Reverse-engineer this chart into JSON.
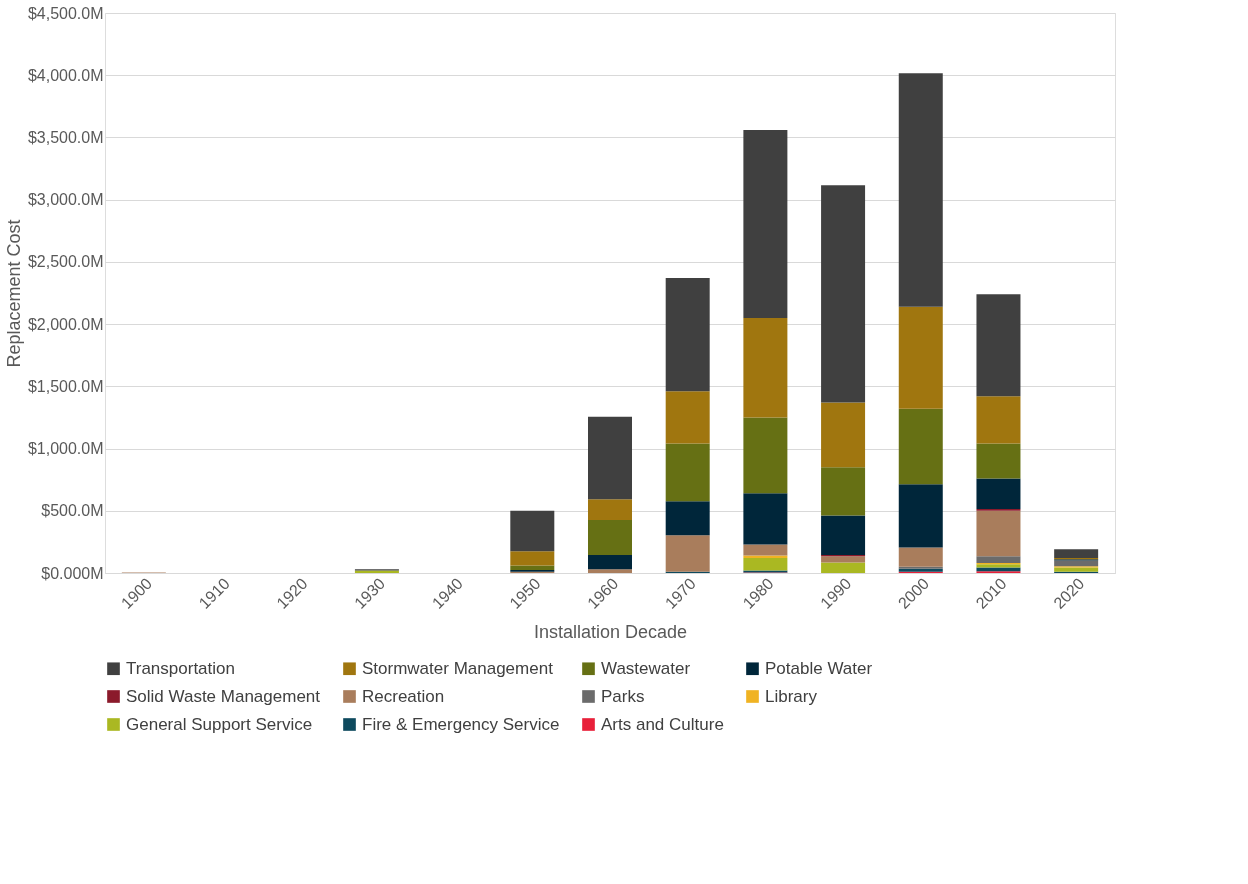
{
  "chart_data": {
    "type": "bar",
    "stacked": true,
    "xlabel": "Installation Decade",
    "ylabel": "Replacement Cost",
    "categories": [
      "1900",
      "1910",
      "1920",
      "1930",
      "1940",
      "1950",
      "1960",
      "1970",
      "1980",
      "1990",
      "2000",
      "2010",
      "2020"
    ],
    "series": [
      {
        "name": "Arts and Culture",
        "color": "#e8203a",
        "values": [
          null,
          null,
          null,
          null,
          null,
          null,
          null,
          null,
          5,
          null,
          10,
          15,
          null
        ]
      },
      {
        "name": "Fire & Emergency Service",
        "color": "#0e4a5e",
        "values": [
          null,
          null,
          null,
          null,
          null,
          null,
          null,
          10,
          15,
          null,
          25,
          30,
          10
        ]
      },
      {
        "name": "General Support Service",
        "color": "#aab822",
        "values": [
          null,
          null,
          null,
          20,
          null,
          null,
          null,
          null,
          100,
          85,
          null,
          25,
          35
        ]
      },
      {
        "name": "Library",
        "color": "#f0b323",
        "values": [
          null,
          null,
          null,
          null,
          null,
          null,
          null,
          null,
          20,
          null,
          null,
          10,
          10
        ]
      },
      {
        "name": "Parks",
        "color": "#6b6b6b",
        "values": [
          null,
          null,
          null,
          null,
          null,
          null,
          null,
          null,
          null,
          null,
          15,
          55,
          45
        ]
      },
      {
        "name": "Recreation",
        "color": "#a97d5c",
        "values": [
          5,
          null,
          null,
          null,
          null,
          10,
          30,
          294,
          90,
          50,
          155,
          365,
          null
        ]
      },
      {
        "name": "Solid Waste Management",
        "color": "#8b1a2b",
        "values": [
          null,
          null,
          null,
          null,
          null,
          null,
          null,
          null,
          null,
          10,
          null,
          15,
          null
        ]
      },
      {
        "name": "Potable Water",
        "color": "#00263a",
        "values": [
          null,
          null,
          null,
          null,
          null,
          15,
          114,
          273,
          410,
          318,
          508,
          245,
          10
        ]
      },
      {
        "name": "Wastewater",
        "color": "#667014",
        "values": [
          null,
          null,
          null,
          null,
          null,
          35,
          281,
          463,
          610,
          387,
          607,
          280,
          null
        ]
      },
      {
        "name": "Stormwater Management",
        "color": "#a0760f",
        "values": [
          null,
          null,
          null,
          null,
          null,
          115,
          167,
          420,
          800,
          520,
          820,
          380,
          10
        ]
      },
      {
        "name": "Transportation",
        "color": "#404040",
        "values": [
          null,
          null,
          null,
          10,
          null,
          325,
          663,
          910,
          1510,
          1745,
          1875,
          820,
          70
        ]
      }
    ],
    "ylim": [
      0,
      4500
    ],
    "yticks": [
      {
        "value": 0,
        "label": "$0.000M"
      },
      {
        "value": 500,
        "label": "$500.0M"
      },
      {
        "value": 1000,
        "label": "$1,000.0M"
      },
      {
        "value": 1500,
        "label": "$1,500.0M"
      },
      {
        "value": 2000,
        "label": "$2,000.0M"
      },
      {
        "value": 2500,
        "label": "$2,500.0M"
      },
      {
        "value": 3000,
        "label": "$3,000.0M"
      },
      {
        "value": 3500,
        "label": "$3,500.0M"
      },
      {
        "value": 4000,
        "label": "$4,000.0M"
      },
      {
        "value": 4500,
        "label": "$4,500.0M"
      }
    ],
    "grid": "y",
    "legend": "bottom"
  }
}
